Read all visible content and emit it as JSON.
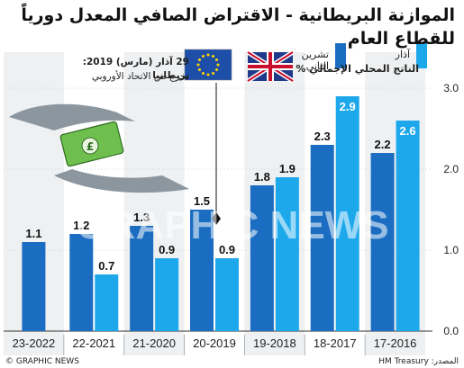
{
  "title": "الموازنة البريطانية - الاقتراض الصافي المعدل دورياً للقطاع العام",
  "annotation": {
    "line1": "29 آذار (مارس) 2019: بريطانيا",
    "line2": "تخرج من الاتحاد الأوروبي"
  },
  "footer": {
    "credit": "© GRAPHIC NEWS",
    "source": "المصدر: HM Treasury"
  },
  "watermark": "GRAPHIC NEWS",
  "colors": {
    "dark": "#1a6dc0",
    "light": "#1ea8ec",
    "projection": "#d2d6da",
    "background_alt": "#eef0f2"
  },
  "chart_data": {
    "type": "bar",
    "ylabel": "الناتج المحلي الإجمالي %",
    "ylim": [
      0,
      3.0
    ],
    "yticks": [
      "0.0",
      "1.0",
      "2.0",
      "3.0"
    ],
    "categories": [
      "23-2022",
      "22-2021",
      "21-2020",
      "20-2019",
      "19-2018",
      "18-2017",
      "17-2016"
    ],
    "series": [
      {
        "name": "تشرين الثاني",
        "key": "nov",
        "values": [
          1.1,
          1.2,
          1.3,
          1.5,
          1.8,
          2.3,
          2.2
        ],
        "labels": [
          "1.1",
          "1.2",
          "1.3",
          "1.5",
          "1.8",
          "2.3",
          "2.2"
        ]
      },
      {
        "name": "آذار",
        "key": "mar",
        "values": [
          null,
          0.7,
          0.9,
          0.9,
          1.9,
          2.9,
          2.6
        ],
        "labels": [
          "",
          "0.7",
          "0.9",
          "0.9",
          "1.9",
          "2.9",
          "2.6"
        ]
      }
    ],
    "legend_position": "top-right",
    "grid": false
  }
}
